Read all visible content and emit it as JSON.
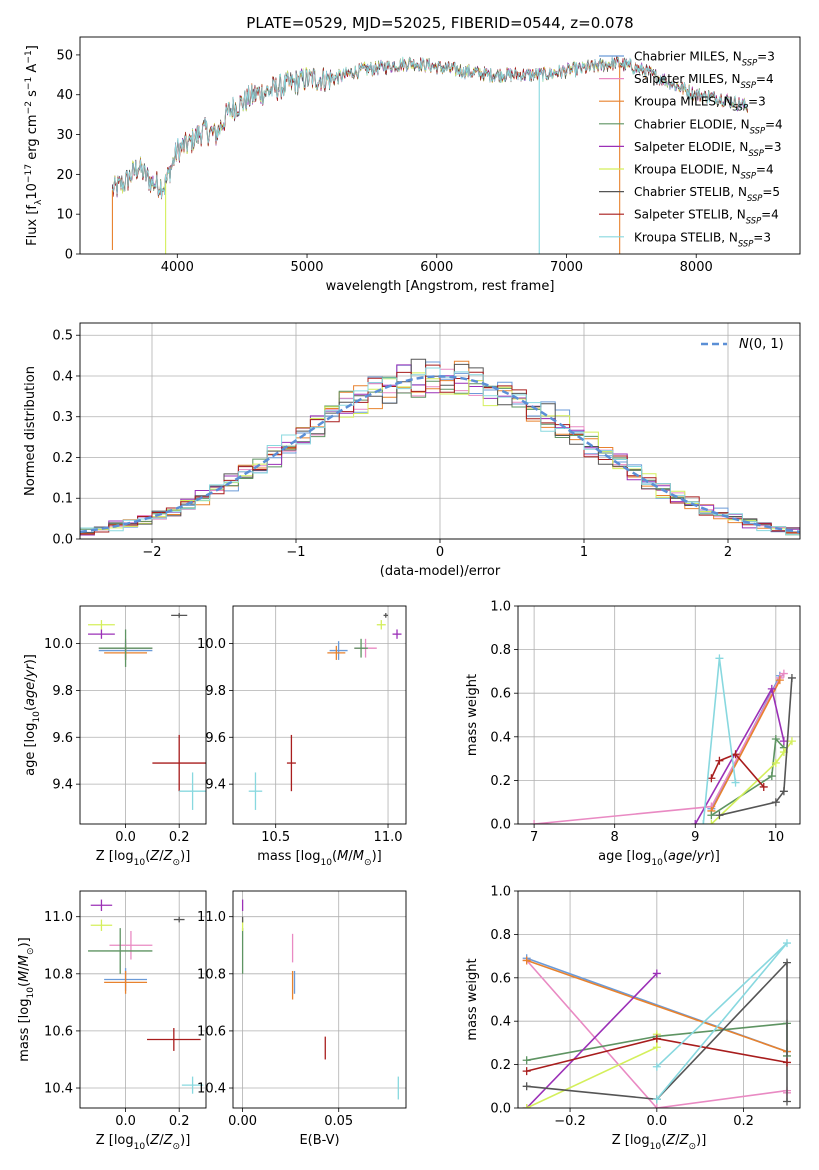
{
  "colors": {
    "chabrier_miles": "#6b9bd8",
    "salpeter_miles": "#e98ac3",
    "kroupa_miles": "#e8822e",
    "chabrier_elodie": "#5e9462",
    "salpeter_elodie": "#9b30b7",
    "kroupa_elodie": "#d4ef5b",
    "chabrier_stelib": "#555555",
    "salpeter_stelib": "#a81d1d",
    "kroupa_stelib": "#88d8df",
    "normal": "#5b8fd6",
    "grid": "#b0b0b0"
  },
  "legend_labels": [
    "Chabrier MILES, N_SSP=3",
    "Salpeter MILES, N_SSP=4",
    "Kroupa MILES, N_SSP=3",
    "Chabrier ELODIE, N_SSP=4",
    "Salpeter ELODIE, N_SSP=3",
    "Kroupa ELODIE, N_SSP=4",
    "Chabrier STELIB, N_SSP=5",
    "Salpeter STELIB, N_SSP=4",
    "Kroupa STELIB, N_SSP=3"
  ],
  "chart_data": [
    {
      "type": "line",
      "title": "PLATE=0529, MJD=52025, FIBERID=0544, z=0.078",
      "xlabel": "wavelength [Angstrom, rest frame]",
      "ylabel": "Flux [f_λ 10^-17 erg cm^-2 s^-1 A^-1]",
      "xlim": [
        3250,
        8800
      ],
      "ylim": [
        0,
        54.5
      ],
      "xticks": [
        4000,
        5000,
        6000,
        7000,
        8000
      ],
      "yticks": [
        0,
        10,
        20,
        30,
        40,
        50
      ],
      "grid": false,
      "legend": "top-right",
      "spectrum_anchors": {
        "x": [
          3500,
          3600,
          3700,
          3800,
          3900,
          4000,
          4100,
          4200,
          4300,
          4400,
          4500,
          4600,
          4800,
          5000,
          5200,
          5400,
          5600,
          5800,
          6000,
          6200,
          6400,
          6600,
          6800,
          7000,
          7200,
          7400,
          7600,
          7800,
          8000,
          8200,
          8400
        ],
        "y": [
          16,
          18,
          22,
          18,
          17,
          26,
          28,
          31,
          30,
          36,
          38,
          40,
          42,
          44,
          44,
          46,
          47,
          48,
          47,
          46,
          45,
          45,
          45,
          46,
          47,
          48,
          46,
          43,
          40,
          39,
          37
        ]
      },
      "dropouts": [
        {
          "x": 3500,
          "y": 1
        },
        {
          "x": 3910,
          "y": 0
        },
        {
          "x": 6790,
          "y": 0
        },
        {
          "x": 7410,
          "y": 0
        }
      ]
    },
    {
      "type": "bar",
      "subtype": "step-histogram",
      "xlabel": "(data-model)/error",
      "ylabel": "Normed distribution",
      "xlim": [
        -2.5,
        2.5
      ],
      "ylim": [
        0,
        0.53
      ],
      "xticks": [
        -2,
        -1,
        0,
        1,
        2
      ],
      "yticks": [
        0.0,
        0.1,
        0.2,
        0.3,
        0.4,
        0.5
      ],
      "grid": true,
      "legend": "top-right",
      "legend_label": "N(0,1)",
      "bin_width": 0.1,
      "reference": {
        "name": "N(0,1)",
        "mean": 0,
        "sigma": 1
      }
    },
    {
      "type": "scatter",
      "subtype": "errorbar",
      "xlabel": "Z [log10(Z/Z☉)]",
      "ylabel": "age  [log10(age/yr)]",
      "xlim": [
        -0.17,
        0.3
      ],
      "ylim": [
        9.23,
        10.16
      ],
      "xticks": [
        0.0,
        0.2
      ],
      "yticks": [
        9.4,
        9.6,
        9.8,
        10.0
      ],
      "points": [
        {
          "model": "chabrier_miles",
          "x": 0.0,
          "xerr": 0.1,
          "y": 9.97,
          "yerr": 0.04
        },
        {
          "model": "salpeter_miles",
          "x": 0.0,
          "xerr": 0.1,
          "y": 9.98,
          "yerr": 0.04
        },
        {
          "model": "kroupa_miles",
          "x": 0.0,
          "xerr": 0.08,
          "y": 9.96,
          "yerr": 0.03
        },
        {
          "model": "chabrier_elodie",
          "x": 0.0,
          "xerr": 0.1,
          "y": 9.98,
          "yerr": 0.08
        },
        {
          "model": "salpeter_elodie",
          "x": -0.09,
          "xerr": 0.05,
          "y": 10.04,
          "yerr": 0.02
        },
        {
          "model": "kroupa_elodie",
          "x": -0.09,
          "xerr": 0.05,
          "y": 10.08,
          "yerr": 0.02
        },
        {
          "model": "chabrier_stelib",
          "x": 0.2,
          "xerr": 0.03,
          "y": 10.12,
          "yerr": 0.01
        },
        {
          "model": "salpeter_stelib",
          "x": 0.2,
          "xerr": 0.1,
          "y": 9.49,
          "yerr": 0.12
        },
        {
          "model": "kroupa_stelib",
          "x": 0.25,
          "xerr": 0.05,
          "y": 9.37,
          "yerr": 0.08
        }
      ]
    },
    {
      "type": "scatter",
      "subtype": "errorbar",
      "xlabel": "mass [log10(M/M☉)]",
      "ylabel": "",
      "xlim": [
        10.31,
        11.08
      ],
      "ylim": [
        9.23,
        10.16
      ],
      "xticks": [
        10.5,
        11.0
      ],
      "yticks": [
        9.4,
        9.6,
        9.8,
        10.0
      ],
      "points": [
        {
          "model": "chabrier_miles",
          "x": 10.78,
          "xerr": 0.04,
          "y": 9.97,
          "yerr": 0.04
        },
        {
          "model": "salpeter_miles",
          "x": 10.9,
          "xerr": 0.05,
          "y": 9.98,
          "yerr": 0.04
        },
        {
          "model": "kroupa_miles",
          "x": 10.77,
          "xerr": 0.04,
          "y": 9.96,
          "yerr": 0.03
        },
        {
          "model": "chabrier_elodie",
          "x": 10.88,
          "xerr": 0.03,
          "y": 9.98,
          "yerr": 0.04
        },
        {
          "model": "salpeter_elodie",
          "x": 11.04,
          "xerr": 0.02,
          "y": 10.04,
          "yerr": 0.02
        },
        {
          "model": "kroupa_elodie",
          "x": 10.97,
          "xerr": 0.02,
          "y": 10.08,
          "yerr": 0.02
        },
        {
          "model": "chabrier_stelib",
          "x": 10.99,
          "xerr": 0.01,
          "y": 10.12,
          "yerr": 0.01
        },
        {
          "model": "salpeter_stelib",
          "x": 10.57,
          "xerr": 0.02,
          "y": 9.49,
          "yerr": 0.12
        },
        {
          "model": "kroupa_stelib",
          "x": 10.41,
          "xerr": 0.03,
          "y": 9.37,
          "yerr": 0.08
        }
      ]
    },
    {
      "type": "line",
      "xlabel": "age  [log10(age/yr)]",
      "ylabel": "mass weight",
      "xlim": [
        6.8,
        10.3
      ],
      "ylim": [
        0,
        1
      ],
      "xticks": [
        7,
        8,
        9,
        10
      ],
      "yticks": [
        0.0,
        0.2,
        0.4,
        0.6,
        0.8,
        1.0
      ],
      "grid": true,
      "series": [
        {
          "model": "chabrier_miles",
          "x": [
            9.2,
            10.05
          ],
          "y": [
            0.07,
            0.68
          ]
        },
        {
          "model": "salpeter_miles",
          "x": [
            7.0,
            9.2,
            10.05,
            10.1
          ],
          "y": [
            0.0,
            0.08,
            0.67,
            0.69
          ]
        },
        {
          "model": "kroupa_miles",
          "x": [
            9.2,
            10.05
          ],
          "y": [
            0.06,
            0.66
          ]
        },
        {
          "model": "chabrier_elodie",
          "x": [
            9.2,
            9.95,
            10.0,
            10.1
          ],
          "y": [
            0.04,
            0.22,
            0.39,
            0.35
          ]
        },
        {
          "model": "salpeter_elodie",
          "x": [
            9.0,
            9.95,
            10.1
          ],
          "y": [
            0.0,
            0.62,
            0.38
          ]
        },
        {
          "model": "kroupa_elodie",
          "x": [
            9.2,
            10.0,
            10.1,
            10.2
          ],
          "y": [
            0.0,
            0.28,
            0.33,
            0.38
          ]
        },
        {
          "model": "chabrier_stelib",
          "x": [
            9.3,
            10.0,
            10.1,
            10.2
          ],
          "y": [
            0.04,
            0.1,
            0.15,
            0.67
          ]
        },
        {
          "model": "salpeter_stelib",
          "x": [
            9.2,
            9.3,
            9.5,
            9.85
          ],
          "y": [
            0.21,
            0.29,
            0.32,
            0.17
          ]
        },
        {
          "model": "kroupa_stelib",
          "x": [
            9.1,
            9.3,
            9.5
          ],
          "y": [
            0.0,
            0.76,
            0.19
          ]
        }
      ]
    },
    {
      "type": "scatter",
      "subtype": "errorbar",
      "xlabel": "Z [log10(Z/Z☉)]",
      "ylabel": "mass [log10(M/M☉)]",
      "xlim": [
        -0.17,
        0.3
      ],
      "ylim": [
        10.33,
        11.09
      ],
      "xticks": [
        0.0,
        0.2
      ],
      "yticks": [
        10.4,
        10.6,
        10.8,
        11.0
      ],
      "points": [
        {
          "model": "chabrier_miles",
          "x": 0.0,
          "xerr": 0.08,
          "y": 10.78,
          "yerr": 0.04
        },
        {
          "model": "salpeter_miles",
          "x": 0.02,
          "xerr": 0.08,
          "y": 10.9,
          "yerr": 0.05
        },
        {
          "model": "kroupa_miles",
          "x": 0.0,
          "xerr": 0.08,
          "y": 10.77,
          "yerr": 0.04
        },
        {
          "model": "chabrier_elodie",
          "x": -0.02,
          "xerr": 0.12,
          "y": 10.88,
          "yerr": 0.08
        },
        {
          "model": "salpeter_elodie",
          "x": -0.09,
          "xerr": 0.04,
          "y": 11.04,
          "yerr": 0.02
        },
        {
          "model": "kroupa_elodie",
          "x": -0.09,
          "xerr": 0.04,
          "y": 10.97,
          "yerr": 0.02
        },
        {
          "model": "chabrier_stelib",
          "x": 0.2,
          "xerr": 0.02,
          "y": 10.99,
          "yerr": 0.01
        },
        {
          "model": "salpeter_stelib",
          "x": 0.18,
          "xerr": 0.1,
          "y": 10.57,
          "yerr": 0.04
        },
        {
          "model": "kroupa_stelib",
          "x": 0.25,
          "xerr": 0.04,
          "y": 10.41,
          "yerr": 0.03
        }
      ]
    },
    {
      "type": "scatter",
      "subtype": "errorbar",
      "xlabel": "E(B-V)",
      "ylabel": "",
      "xlim": [
        -0.005,
        0.085
      ],
      "ylim": [
        10.33,
        11.09
      ],
      "xticks": [
        0.0,
        0.05
      ],
      "yticks": [
        10.4,
        10.6,
        10.8,
        11.0
      ],
      "points": [
        {
          "model": "chabrier_miles",
          "x": 0.027,
          "xerr": 0,
          "y": 10.77,
          "yerr": 0.04
        },
        {
          "model": "salpeter_miles",
          "x": 0.026,
          "xerr": 0,
          "y": 10.89,
          "yerr": 0.05
        },
        {
          "model": "kroupa_miles",
          "x": 0.026,
          "xerr": 0,
          "y": 10.76,
          "yerr": 0.05
        },
        {
          "model": "chabrier_elodie",
          "x": 0.0,
          "xerr": 0,
          "y": 10.88,
          "yerr": 0.08
        },
        {
          "model": "salpeter_elodie",
          "x": 0.0,
          "xerr": 0,
          "y": 11.04,
          "yerr": 0.02
        },
        {
          "model": "kroupa_elodie",
          "x": 0.0,
          "xerr": 0,
          "y": 10.97,
          "yerr": 0.02
        },
        {
          "model": "chabrier_stelib",
          "x": 0.0,
          "xerr": 0,
          "y": 10.99,
          "yerr": 0.01
        },
        {
          "model": "salpeter_stelib",
          "x": 0.043,
          "xerr": 0,
          "y": 10.54,
          "yerr": 0.04
        },
        {
          "model": "kroupa_stelib",
          "x": 0.081,
          "xerr": 0,
          "y": 10.4,
          "yerr": 0.04
        }
      ]
    },
    {
      "type": "line",
      "xlabel": "Z [log10(Z/Z☉)]",
      "ylabel": "mass weight",
      "xlim": [
        -0.32,
        0.33
      ],
      "ylim": [
        0,
        1
      ],
      "xticks": [
        -0.2,
        0.0,
        0.2
      ],
      "yticks": [
        0.0,
        0.2,
        0.4,
        0.6,
        0.8,
        1.0
      ],
      "grid": true,
      "series": [
        {
          "model": "chabrier_miles",
          "x": [
            -0.3,
            0.3
          ],
          "y": [
            0.69,
            0.26
          ]
        },
        {
          "model": "salpeter_miles",
          "x": [
            -0.3,
            0.0,
            0.3,
            0.3
          ],
          "y": [
            0.68,
            0.0,
            0.08,
            0.07
          ]
        },
        {
          "model": "kroupa_miles",
          "x": [
            -0.3,
            0.3
          ],
          "y": [
            0.68,
            0.26
          ]
        },
        {
          "model": "chabrier_elodie",
          "x": [
            -0.3,
            0.0,
            0.3,
            0.3
          ],
          "y": [
            0.22,
            0.33,
            0.39,
            0.24
          ]
        },
        {
          "model": "salpeter_elodie",
          "x": [
            -0.3,
            0.0
          ],
          "y": [
            0.0,
            0.62
          ]
        },
        {
          "model": "kroupa_elodie",
          "x": [
            -0.3,
            0.0,
            0.0
          ],
          "y": [
            0.0,
            0.28,
            0.34
          ]
        },
        {
          "model": "chabrier_stelib",
          "x": [
            -0.3,
            0.0,
            0.3,
            0.3
          ],
          "y": [
            0.1,
            0.04,
            0.67,
            0.03
          ]
        },
        {
          "model": "salpeter_stelib",
          "x": [
            -0.3,
            0.0,
            0.3
          ],
          "y": [
            0.17,
            0.32,
            0.21
          ]
        },
        {
          "model": "kroupa_stelib",
          "x": [
            0.0,
            0.3,
            0.0
          ],
          "y": [
            0.04,
            0.76,
            0.19
          ]
        }
      ]
    }
  ]
}
